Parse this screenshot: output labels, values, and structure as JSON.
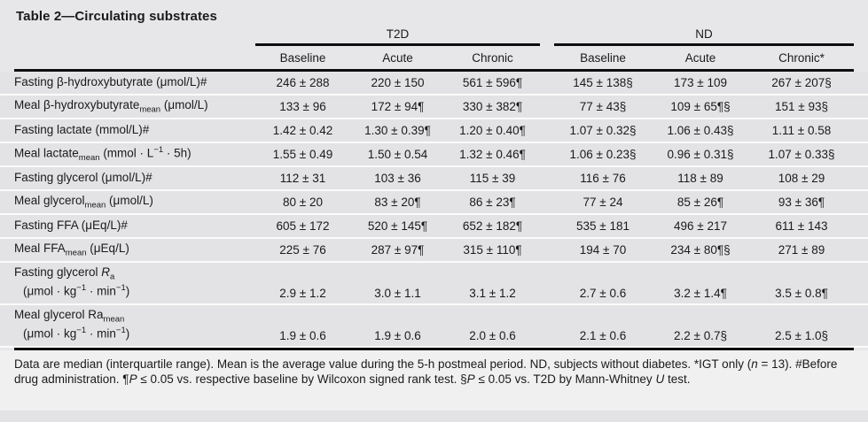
{
  "title": "Table 2—Circulating substrates",
  "table": {
    "groups": [
      {
        "label": "T2D"
      },
      {
        "label": "ND"
      }
    ],
    "columns": [
      "Baseline",
      "Acute",
      "Chronic",
      "Baseline",
      "Acute",
      "Chronic*"
    ],
    "rows": [
      {
        "label_html": "Fasting β-hydroxybutyrate (μmol/L)#",
        "label2_html": null,
        "values": [
          "246 ± 288",
          "220 ± 150",
          "561 ± 596¶",
          "145 ± 138§",
          "173 ± 109",
          "267 ± 207§"
        ]
      },
      {
        "label_html": "Meal β-hydroxybutyrate<sub>mean</sub> (μmol/L)",
        "label2_html": null,
        "values": [
          "133 ± 96",
          "172 ± 94¶",
          "330 ± 382¶",
          "77 ± 43§",
          "109 ± 65¶§",
          "151 ± 93§"
        ]
      },
      {
        "label_html": "Fasting lactate (mmol/L)#",
        "label2_html": null,
        "values": [
          "1.42 ± 0.42",
          "1.30 ± 0.39¶",
          "1.20 ± 0.40¶",
          "1.07 ± 0.32§",
          "1.06 ± 0.43§",
          "1.11 ± 0.58"
        ]
      },
      {
        "label_html": "Meal lactate<sub>mean</sub> (mmol · L<sup>−1</sup> · 5h)",
        "label2_html": null,
        "values": [
          "1.55 ± 0.49",
          "1.50 ± 0.54",
          "1.32 ± 0.46¶",
          "1.06 ± 0.23§",
          "0.96 ± 0.31§",
          "1.07 ± 0.33§"
        ]
      },
      {
        "label_html": "Fasting glycerol (μmol/L)#",
        "label2_html": null,
        "values": [
          "112 ± 31",
          "103 ± 36",
          "115 ± 39",
          "116 ± 76",
          "118 ± 89",
          "108 ± 29"
        ]
      },
      {
        "label_html": "Meal glycerol<sub>mean</sub> (μmol/L)",
        "label2_html": null,
        "values": [
          "80 ± 20",
          "83 ± 20¶",
          "86 ± 23¶",
          "77 ± 24",
          "85 ± 26¶",
          "93 ± 36¶"
        ]
      },
      {
        "label_html": "Fasting FFA (μEq/L)#",
        "label2_html": null,
        "values": [
          "605 ± 172",
          "520 ± 145¶",
          "652 ± 182¶",
          "535 ± 181",
          "496 ± 217",
          "611 ± 143"
        ]
      },
      {
        "label_html": "Meal FFA<sub>mean</sub> (μEq/L)",
        "label2_html": null,
        "values": [
          "225 ± 76",
          "287 ± 97¶",
          "315 ± 110¶",
          "194 ± 70",
          "234 ± 80¶§",
          "271 ± 89"
        ]
      },
      {
        "label_html": "Fasting glycerol <i>R</i><sub>a</sub>",
        "label2_html": "(μmol · kg<sup>−1</sup> · min<sup>−1</sup>)",
        "values": [
          "2.9 ± 1.2",
          "3.0 ± 1.1",
          "3.1 ± 1.2",
          "2.7 ± 0.6",
          "3.2 ± 1.4¶",
          "3.5 ± 0.8¶"
        ]
      },
      {
        "label_html": "Meal glycerol Ra<sub>mean</sub>",
        "label2_html": "(μmol · kg<sup>−1</sup> · min<sup>−1</sup>)",
        "values": [
          "1.9 ± 0.6",
          "1.9 ± 0.6",
          "2.0 ± 0.6",
          "2.1 ± 0.6",
          "2.2 ± 0.7§",
          "2.5 ± 1.0§"
        ]
      }
    ]
  },
  "footnote_html": "Data are median (interquartile range). Mean is the average value during the 5-h postmeal period. ND, subjects without diabetes. *IGT only (<i>n</i> = 13). #Before drug administration. ¶<i>P</i> ≤ 0.05 vs. respective baseline by Wilcoxon signed rank test. §<i>P</i> ≤ 0.05 vs. T2D by Mann-Whitney <i>U</i> test.",
  "colors": {
    "page_bg": "#e7e7e9",
    "band": "#e3e3e5",
    "separator": "#fbfbfb",
    "rule": "#0e0e0e",
    "text": "#1a1a1a",
    "footnote_bg": "#f0f0f0"
  }
}
